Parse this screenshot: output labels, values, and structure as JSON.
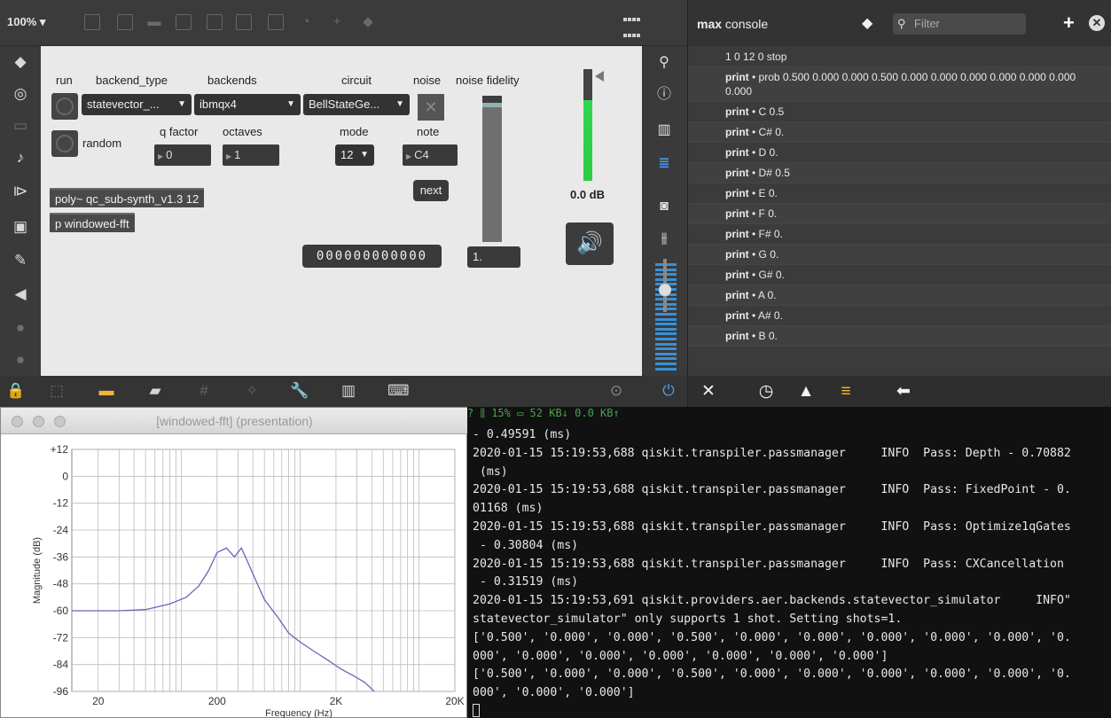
{
  "patcher": {
    "zoom": "100% ▾",
    "labels": {
      "run": "run",
      "backend_type": "backend_type",
      "backends": "backends",
      "circuit": "circuit",
      "noise": "noise",
      "noise_fidelity": "noise fidelity",
      "random": "random",
      "q_factor": "q factor",
      "octaves": "octaves",
      "mode": "mode",
      "note": "note"
    },
    "backend_type_value": "statevector_...",
    "backends_value": "ibmqx4",
    "circuit_value": "BellStateGe...",
    "q_factor_value": "0",
    "octaves_value": "1",
    "mode_value": "12",
    "note_value": "C4",
    "next_label": "next",
    "poly_object": "poly~ qc_sub-synth_v1.3 12",
    "fft_object": "p windowed-fft",
    "bit_display": "000000000000",
    "noise_fidelity_value": "1.",
    "noise_fidelity_level": 0.95,
    "meter_level": 0.72,
    "gain_readout": "0.0 dB"
  },
  "console": {
    "title_bold": "max",
    "title_rest": " console",
    "filter_placeholder": "Filter",
    "rows": [
      {
        "src": "",
        "text": "1 0 12 0 stop"
      },
      {
        "src": "print",
        "text": " • prob 0.500 0.000 0.000 0.500 0.000 0.000 0.000 0.000 0.000 0.000 0.000"
      },
      {
        "src": "print",
        "text": " • C 0.5"
      },
      {
        "src": "print",
        "text": " • C# 0."
      },
      {
        "src": "print",
        "text": " • D 0."
      },
      {
        "src": "print",
        "text": " • D# 0.5"
      },
      {
        "src": "print",
        "text": " • E 0."
      },
      {
        "src": "print",
        "text": " • F 0."
      },
      {
        "src": "print",
        "text": " • F# 0."
      },
      {
        "src": "print",
        "text": " • G 0."
      },
      {
        "src": "print",
        "text": " • G# 0."
      },
      {
        "src": "print",
        "text": " • A 0."
      },
      {
        "src": "print",
        "text": " • A# 0."
      },
      {
        "src": "print",
        "text": " • B 0."
      }
    ]
  },
  "fft_window": {
    "title": "[windowed-fft] (presentation)"
  },
  "chart_data": {
    "type": "line",
    "title": "",
    "xlabel": "Frequency (Hz)",
    "ylabel": "Magnitude (dB)",
    "xscale": "log",
    "xlim": [
      12,
      20000
    ],
    "ylim": [
      -96,
      12
    ],
    "grid": true,
    "y_ticks": [
      "+12",
      "0",
      "-12",
      "-24",
      "-36",
      "-48",
      "-60",
      "-72",
      "-84",
      "-96"
    ],
    "x_ticks": [
      {
        "value": 20,
        "label": "20"
      },
      {
        "value": 200,
        "label": "200"
      },
      {
        "value": 2000,
        "label": "2K"
      },
      {
        "value": 20000,
        "label": "20K"
      }
    ],
    "series": [
      {
        "color": "#6666bb",
        "x": [
          12,
          30,
          50,
          80,
          110,
          140,
          170,
          200,
          240,
          280,
          320,
          360,
          420,
          500,
          650,
          800,
          1000,
          1300,
          1700,
          2200,
          2800,
          3500,
          4200
        ],
        "y": [
          -60,
          -60,
          -59.5,
          -57,
          -54,
          -49,
          -42,
          -34,
          -32,
          -36,
          -32,
          -38,
          -46,
          -55,
          -63,
          -70,
          -74,
          -78,
          -82,
          -86,
          -89,
          -92,
          -96
        ]
      }
    ]
  },
  "terminal": {
    "status": "?                                                    ⫼ 15%                            ▭ 52 KB↓                0.0 KB↑",
    "lines": [
      "- 0.49591 (ms)",
      "2020-01-15 15:19:53,688 qiskit.transpiler.passmanager     INFO  Pass: Depth - 0.70882",
      " (ms)",
      "2020-01-15 15:19:53,688 qiskit.transpiler.passmanager     INFO  Pass: FixedPoint - 0.",
      "01168 (ms)",
      "2020-01-15 15:19:53,688 qiskit.transpiler.passmanager     INFO  Pass: Optimize1qGates",
      " - 0.30804 (ms)",
      "2020-01-15 15:19:53,688 qiskit.transpiler.passmanager     INFO  Pass: CXCancellation",
      " - 0.31519 (ms)",
      "2020-01-15 15:19:53,691 qiskit.providers.aer.backends.statevector_simulator     INFO\"",
      "statevector_simulator\" only supports 1 shot. Setting shots=1.",
      "['0.500', '0.000', '0.000', '0.500', '0.000', '0.000', '0.000', '0.000', '0.000', '0.",
      "000', '0.000', '0.000', '0.000', '0.000', '0.000', '0.000']",
      "['0.500', '0.000', '0.000', '0.500', '0.000', '0.000', '0.000', '0.000', '0.000', '0.",
      "000', '0.000', '0.000']"
    ]
  }
}
